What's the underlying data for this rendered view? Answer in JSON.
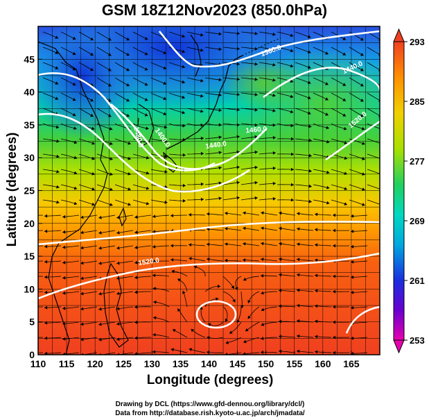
{
  "title": "GSM 18Z12Nov2023 (850.0hPa)",
  "xlabel": "Longitude (degrees)",
  "ylabel": "Latitude  (degrees)",
  "credits": {
    "line1": "Drawing by DCL (https://www.gfd-dennou.org/library/dcl/)",
    "line2": "Data from http://database.rish.kyoto-u.ac.jp/arch/jmadata/"
  },
  "colorbar": {
    "ticks": [
      "293",
      "285",
      "277",
      "269",
      "261",
      "253"
    ],
    "min": 253,
    "max": 293,
    "colors": [
      "#e800b0",
      "#6a00d0",
      "#1a2ee0",
      "#00a8e0",
      "#00d8c0",
      "#20d060",
      "#a8e000",
      "#f0d000",
      "#ff9000",
      "#f04020"
    ]
  },
  "map": {
    "x_ticks": [
      "110",
      "115",
      "120",
      "125",
      "130",
      "135",
      "140",
      "145",
      "150",
      "155",
      "160",
      "165"
    ],
    "y_ticks": [
      "0",
      "5",
      "10",
      "15",
      "20",
      "25",
      "30",
      "35",
      "40",
      "45"
    ],
    "lon_range": [
      110,
      170
    ],
    "lat_range": [
      0,
      50
    ],
    "grid_step_deg": 2.5,
    "contour_labels": [
      "1360.0",
      "1400.0",
      "1440.0",
      "1480.0",
      "1520.0",
      "1440.0",
      "1460.0",
      "1520.0"
    ]
  }
}
